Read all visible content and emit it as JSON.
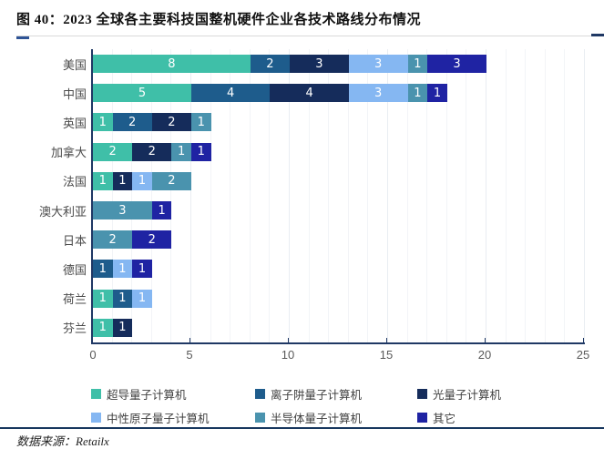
{
  "header": {
    "title": "图 40：2023 全球各主要科技国整机硬件企业各技术路线分布情况"
  },
  "footer": {
    "source_label": "数据来源：Retailx"
  },
  "colors": {
    "axis": "#1f3864",
    "rule": "#17375e",
    "bar_label": "#ffffff",
    "tick_label": "#595959",
    "category_label": "#4a4a4a"
  },
  "chart_data": {
    "type": "bar",
    "orientation": "horizontal",
    "stacked": true,
    "title": "图 40：2023 全球各主要科技国整机硬件企业各技术路线分布情况",
    "xlabel": "",
    "ylabel": "",
    "xlim": [
      0,
      25
    ],
    "xticks": [
      0,
      5,
      10,
      15,
      20,
      25
    ],
    "grid": true,
    "legend_position": "bottom",
    "categories": [
      "美国",
      "中国",
      "英国",
      "加拿大",
      "法国",
      "澳大利亚",
      "日本",
      "德国",
      "荷兰",
      "芬兰"
    ],
    "series": [
      {
        "name": "超导量子计算机",
        "color": "#3fbfa8",
        "values": [
          8,
          5,
          1,
          2,
          1,
          0,
          0,
          0,
          1,
          1
        ]
      },
      {
        "name": "离子阱量子计算机",
        "color": "#1e5c8c",
        "values": [
          2,
          4,
          2,
          0,
          0,
          0,
          0,
          1,
          1,
          0
        ]
      },
      {
        "name": "光量子计算机",
        "color": "#152c5b",
        "values": [
          3,
          4,
          2,
          2,
          1,
          0,
          0,
          0,
          0,
          1
        ]
      },
      {
        "name": "中性原子量子计算机",
        "color": "#85b7f2",
        "values": [
          3,
          3,
          0,
          0,
          1,
          0,
          0,
          1,
          1,
          0
        ]
      },
      {
        "name": "半导体量子计算机",
        "color": "#4a93ae",
        "values": [
          1,
          1,
          1,
          1,
          2,
          3,
          2,
          0,
          0,
          0
        ]
      },
      {
        "name": "其它",
        "color": "#1f23a3",
        "values": [
          3,
          1,
          0,
          1,
          0,
          1,
          2,
          1,
          0,
          0
        ]
      }
    ],
    "totals": {
      "美国": 20,
      "中国": 18,
      "英国": 6,
      "加拿大": 6,
      "法国": 5,
      "澳大利亚": 4,
      "日本": 4,
      "德国": 3,
      "荷兰": 3,
      "芬兰": 2
    }
  }
}
